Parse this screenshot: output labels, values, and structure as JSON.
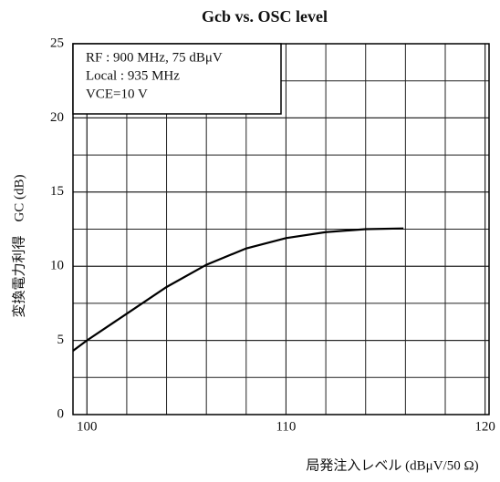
{
  "chart_data": {
    "type": "line",
    "title": "Gcb vs. OSC level",
    "x_label": "局発注入レベル (dBμV/50 Ω)",
    "y_label": "変換電力利得　GC (dB)",
    "annotations": [
      "RF : 900 MHz, 75 dBμV",
      "Local : 935 MHz",
      "VCE=10 V"
    ],
    "series": [
      {
        "color": "#000000",
        "x": [
          99.3,
          100,
          102,
          104,
          106,
          108,
          110,
          112,
          114,
          115.9
        ],
        "values": [
          4.3,
          5.0,
          6.8,
          8.6,
          10.1,
          11.2,
          11.9,
          12.3,
          12.5,
          12.55
        ]
      }
    ],
    "xlim": [
      99.3,
      120.2
    ],
    "xticks": [
      100,
      110,
      120
    ],
    "x_minor_step": 2,
    "ylim": [
      0,
      25
    ],
    "yticks": [
      0,
      5,
      10,
      15,
      20,
      25
    ],
    "y_minor_step": 2.5,
    "grid": true
  }
}
